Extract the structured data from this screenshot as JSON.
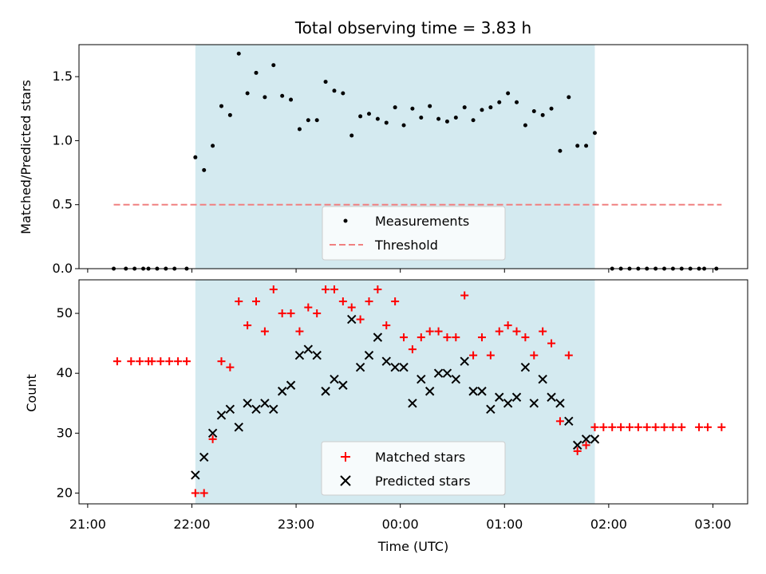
{
  "chart_data": {
    "title": "Total observing time = 3.83 h",
    "xlabel": "Time (UTC)",
    "x_ticks": [
      "21:00",
      "22:00",
      "23:00",
      "00:00",
      "01:00",
      "02:00",
      "03:00"
    ],
    "shaded_span": [
      "22:02",
      "01:52"
    ],
    "shade_color": "#d4eaf0",
    "panels": [
      {
        "name": "ratio",
        "type": "scatter",
        "ylabel": "Matched/Predicted stars",
        "ylim": [
          0,
          1.75
        ],
        "y_ticks": [
          "0.0",
          "0.5",
          "1.0",
          "1.5"
        ],
        "legend": {
          "position": "lower center",
          "entries": [
            "Measurements",
            "Threshold"
          ]
        },
        "threshold": {
          "name": "Threshold",
          "value": 0.5,
          "x_range": [
            "21:15",
            "03:05"
          ],
          "color": "#f08080"
        },
        "series": [
          {
            "name": "Measurements",
            "color": "#000000",
            "points": [
              [
                "21:15",
                0
              ],
              [
                "21:22",
                0
              ],
              [
                "21:27",
                0
              ],
              [
                "21:32",
                0
              ],
              [
                "21:35",
                0
              ],
              [
                "21:40",
                0
              ],
              [
                "21:45",
                0
              ],
              [
                "21:50",
                0
              ],
              [
                "21:57",
                0
              ],
              [
                "22:02",
                0.87
              ],
              [
                "22:07",
                0.77
              ],
              [
                "22:12",
                0.96
              ],
              [
                "22:17",
                1.27
              ],
              [
                "22:22",
                1.2
              ],
              [
                "22:27",
                1.68
              ],
              [
                "22:32",
                1.37
              ],
              [
                "22:37",
                1.53
              ],
              [
                "22:42",
                1.34
              ],
              [
                "22:47",
                1.59
              ],
              [
                "22:52",
                1.35
              ],
              [
                "22:57",
                1.32
              ],
              [
                "23:02",
                1.09
              ],
              [
                "23:07",
                1.16
              ],
              [
                "23:12",
                1.16
              ],
              [
                "23:17",
                1.46
              ],
              [
                "23:22",
                1.39
              ],
              [
                "23:27",
                1.37
              ],
              [
                "23:32",
                1.04
              ],
              [
                "23:37",
                1.19
              ],
              [
                "23:42",
                1.21
              ],
              [
                "23:47",
                1.17
              ],
              [
                "23:52",
                1.14
              ],
              [
                "23:57",
                1.26
              ],
              [
                "00:02",
                1.12
              ],
              [
                "00:07",
                1.25
              ],
              [
                "00:12",
                1.18
              ],
              [
                "00:17",
                1.27
              ],
              [
                "00:22",
                1.17
              ],
              [
                "00:27",
                1.15
              ],
              [
                "00:32",
                1.18
              ],
              [
                "00:37",
                1.26
              ],
              [
                "00:42",
                1.16
              ],
              [
                "00:47",
                1.24
              ],
              [
                "00:52",
                1.26
              ],
              [
                "00:57",
                1.3
              ],
              [
                "01:02",
                1.37
              ],
              [
                "01:07",
                1.3
              ],
              [
                "01:12",
                1.12
              ],
              [
                "01:17",
                1.23
              ],
              [
                "01:22",
                1.2
              ],
              [
                "01:27",
                1.25
              ],
              [
                "01:32",
                0.92
              ],
              [
                "01:37",
                1.34
              ],
              [
                "01:42",
                0.96
              ],
              [
                "01:47",
                0.96
              ],
              [
                "01:52",
                1.06
              ],
              [
                "02:02",
                0
              ],
              [
                "02:07",
                0
              ],
              [
                "02:12",
                0
              ],
              [
                "02:17",
                0
              ],
              [
                "02:22",
                0
              ],
              [
                "02:27",
                0
              ],
              [
                "02:32",
                0
              ],
              [
                "02:37",
                0
              ],
              [
                "02:42",
                0
              ],
              [
                "02:47",
                0
              ],
              [
                "02:52",
                0
              ],
              [
                "02:55",
                0
              ],
              [
                "03:02",
                0
              ]
            ]
          }
        ]
      },
      {
        "name": "counts",
        "type": "scatter",
        "ylabel": "Count",
        "ylim": [
          18.2,
          55.6
        ],
        "y_ticks": [
          "20",
          "30",
          "40",
          "50"
        ],
        "legend": {
          "position": "lower center",
          "entries": [
            "Matched stars",
            "Predicted stars"
          ]
        },
        "series": [
          {
            "name": "Matched stars",
            "color": "#ff0000",
            "marker": "plus",
            "points": [
              [
                "21:17",
                42
              ],
              [
                "21:25",
                42
              ],
              [
                "21:30",
                42
              ],
              [
                "21:35",
                42
              ],
              [
                "21:37",
                42
              ],
              [
                "21:42",
                42
              ],
              [
                "21:47",
                42
              ],
              [
                "21:52",
                42
              ],
              [
                "21:57",
                42
              ],
              [
                "22:02",
                20
              ],
              [
                "22:07",
                20
              ],
              [
                "22:12",
                29
              ],
              [
                "22:17",
                42
              ],
              [
                "22:22",
                41
              ],
              [
                "22:27",
                52
              ],
              [
                "22:32",
                48
              ],
              [
                "22:37",
                52
              ],
              [
                "22:42",
                47
              ],
              [
                "22:47",
                54
              ],
              [
                "22:52",
                50
              ],
              [
                "22:57",
                50
              ],
              [
                "23:02",
                47
              ],
              [
                "23:07",
                51
              ],
              [
                "23:12",
                50
              ],
              [
                "23:17",
                54
              ],
              [
                "23:22",
                54
              ],
              [
                "23:27",
                52
              ],
              [
                "23:32",
                51
              ],
              [
                "23:37",
                49
              ],
              [
                "23:42",
                52
              ],
              [
                "23:47",
                54
              ],
              [
                "23:52",
                48
              ],
              [
                "23:57",
                52
              ],
              [
                "00:02",
                46
              ],
              [
                "00:07",
                44
              ],
              [
                "00:12",
                46
              ],
              [
                "00:17",
                47
              ],
              [
                "00:22",
                47
              ],
              [
                "00:27",
                46
              ],
              [
                "00:32",
                46
              ],
              [
                "00:37",
                53
              ],
              [
                "00:42",
                43
              ],
              [
                "00:47",
                46
              ],
              [
                "00:52",
                43
              ],
              [
                "00:57",
                47
              ],
              [
                "01:02",
                48
              ],
              [
                "01:07",
                47
              ],
              [
                "01:12",
                46
              ],
              [
                "01:17",
                43
              ],
              [
                "01:22",
                47
              ],
              [
                "01:27",
                45
              ],
              [
                "01:32",
                32
              ],
              [
                "01:37",
                43
              ],
              [
                "01:42",
                27
              ],
              [
                "01:47",
                28
              ],
              [
                "01:52",
                31
              ],
              [
                "01:57",
                31
              ],
              [
                "02:02",
                31
              ],
              [
                "02:07",
                31
              ],
              [
                "02:12",
                31
              ],
              [
                "02:17",
                31
              ],
              [
                "02:22",
                31
              ],
              [
                "02:27",
                31
              ],
              [
                "02:32",
                31
              ],
              [
                "02:37",
                31
              ],
              [
                "02:42",
                31
              ],
              [
                "02:52",
                31
              ],
              [
                "02:57",
                31
              ],
              [
                "03:05",
                31
              ]
            ]
          },
          {
            "name": "Predicted stars",
            "color": "#000000",
            "marker": "x",
            "points": [
              [
                "22:02",
                23
              ],
              [
                "22:07",
                26
              ],
              [
                "22:12",
                30
              ],
              [
                "22:17",
                33
              ],
              [
                "22:22",
                34
              ],
              [
                "22:27",
                31
              ],
              [
                "22:32",
                35
              ],
              [
                "22:37",
                34
              ],
              [
                "22:42",
                35
              ],
              [
                "22:47",
                34
              ],
              [
                "22:52",
                37
              ],
              [
                "22:57",
                38
              ],
              [
                "23:02",
                43
              ],
              [
                "23:07",
                44
              ],
              [
                "23:12",
                43
              ],
              [
                "23:17",
                37
              ],
              [
                "23:22",
                39
              ],
              [
                "23:27",
                38
              ],
              [
                "23:32",
                49
              ],
              [
                "23:37",
                41
              ],
              [
                "23:42",
                43
              ],
              [
                "23:47",
                46
              ],
              [
                "23:52",
                42
              ],
              [
                "23:57",
                41
              ],
              [
                "00:02",
                41
              ],
              [
                "00:07",
                35
              ],
              [
                "00:12",
                39
              ],
              [
                "00:17",
                37
              ],
              [
                "00:22",
                40
              ],
              [
                "00:27",
                40
              ],
              [
                "00:32",
                39
              ],
              [
                "00:37",
                42
              ],
              [
                "00:42",
                37
              ],
              [
                "00:47",
                37
              ],
              [
                "00:52",
                34
              ],
              [
                "00:57",
                36
              ],
              [
                "01:02",
                35
              ],
              [
                "01:07",
                36
              ],
              [
                "01:12",
                41
              ],
              [
                "01:17",
                35
              ],
              [
                "01:22",
                39
              ],
              [
                "01:27",
                36
              ],
              [
                "01:32",
                35
              ],
              [
                "01:37",
                32
              ],
              [
                "01:42",
                28
              ],
              [
                "01:47",
                29
              ],
              [
                "01:52",
                29
              ]
            ]
          }
        ]
      }
    ]
  }
}
